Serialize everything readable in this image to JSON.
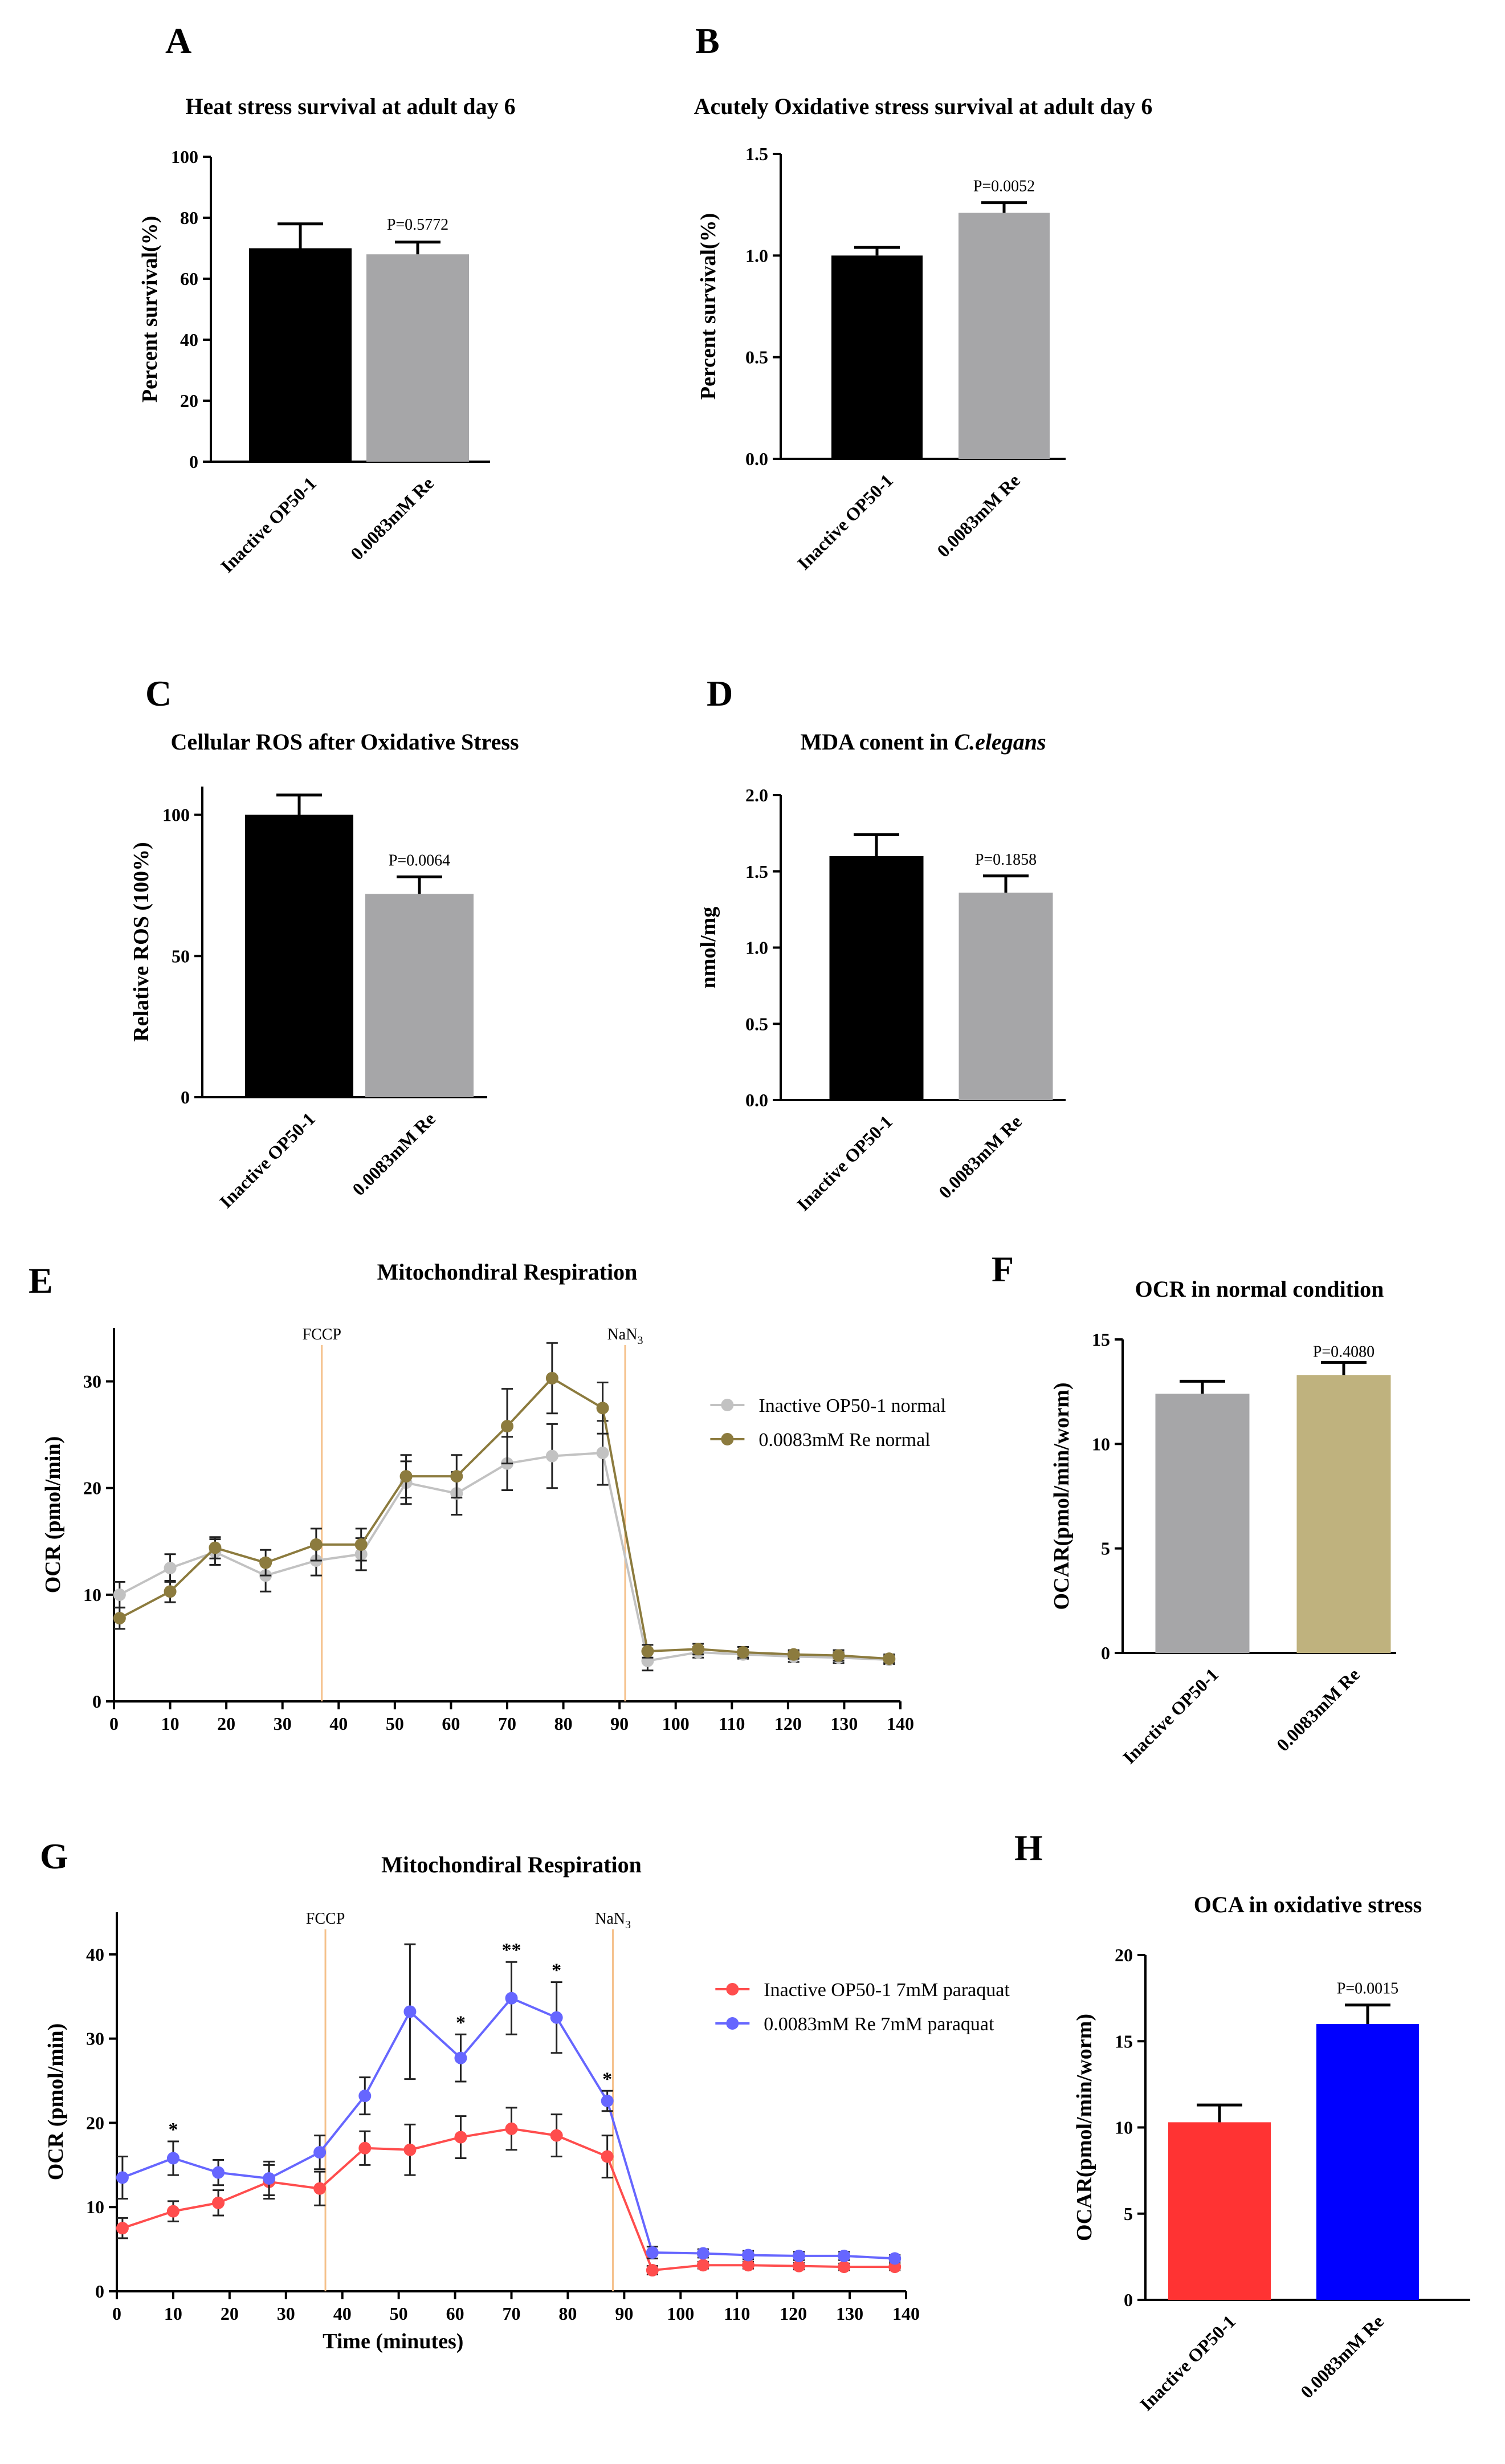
{
  "panels": {
    "A": "A",
    "B": "B",
    "C": "C",
    "D": "D",
    "E": "E",
    "F": "F",
    "G": "G",
    "H": "H"
  },
  "chart_data": [
    {
      "id": "A",
      "type": "bar",
      "title": "Heat stress survival at adult day 6",
      "ylabel": "Percent survival(%)",
      "ylim": [
        0,
        100
      ],
      "yticks": [
        "0",
        "20",
        "40",
        "60",
        "80",
        "100"
      ],
      "categories": [
        "Inactive OP50-1",
        "0.0083mM Re"
      ],
      "values": [
        70,
        68
      ],
      "errors": [
        8,
        4
      ],
      "colors": [
        "#000000",
        "#a6a6a8"
      ],
      "pvalue": "P=0.5772"
    },
    {
      "id": "B",
      "type": "bar",
      "title": "Acutely Oxidative stress survival at adult day 6",
      "ylabel": "Percent survival(%)",
      "ylim": [
        0,
        1.5
      ],
      "yticks": [
        "0.0",
        "0.5",
        "1.0",
        "1.5"
      ],
      "categories": [
        "Inactive OP50-1",
        "0.0083mM Re"
      ],
      "values": [
        1.0,
        1.21
      ],
      "errors": [
        0.04,
        0.05
      ],
      "colors": [
        "#000000",
        "#a6a6a8"
      ],
      "pvalue": "P=0.0052"
    },
    {
      "id": "C",
      "type": "bar",
      "title": "Cellular ROS after Oxidative Stress",
      "ylabel": "Relative  ROS (100%)",
      "ylim": [
        0,
        110
      ],
      "yticks": [
        "0",
        "50",
        "100"
      ],
      "categories": [
        "Inactive OP50-1",
        "0.0083mM Re"
      ],
      "values": [
        100,
        72
      ],
      "errors": [
        7,
        6
      ],
      "colors": [
        "#000000",
        "#a6a6a8"
      ],
      "pvalue": "P=0.0064"
    },
    {
      "id": "D",
      "type": "bar",
      "title_prefix": "MDA conent in ",
      "title_italic": "C.elegans",
      "ylabel": "nmol/mg",
      "ylim": [
        0,
        2.0
      ],
      "yticks": [
        "0.0",
        "0.5",
        "1.0",
        "1.5",
        "2.0"
      ],
      "categories": [
        "Inactive OP50-1",
        "0.0083mM Re"
      ],
      "values": [
        1.6,
        1.36
      ],
      "errors": [
        0.14,
        0.11
      ],
      "colors": [
        "#000000",
        "#a6a6a8"
      ],
      "pvalue": "P=0.1858"
    },
    {
      "id": "E",
      "type": "line",
      "title": "Mitochondiral Respiration",
      "ylabel": "OCR (pmol/min)",
      "xlim": [
        0,
        140
      ],
      "ylim": [
        0,
        35
      ],
      "xticks": [
        "0",
        "10",
        "20",
        "30",
        "40",
        "50",
        "60",
        "70",
        "80",
        "90",
        "100",
        "110",
        "120",
        "130",
        "140"
      ],
      "yticks": [
        "0",
        "10",
        "20",
        "30"
      ],
      "markers": [
        {
          "label": "FCCP",
          "x": 37
        },
        {
          "label": "NaN3",
          "x": 91
        }
      ],
      "series": [
        {
          "name": "Inactive OP50-1 normal",
          "color": "#c2c2c2",
          "x": [
            1,
            10,
            18,
            27,
            36,
            44,
            52,
            61,
            70,
            78,
            87,
            95,
            104,
            112,
            121,
            129,
            138
          ],
          "y": [
            10,
            12.5,
            14,
            11.8,
            13.2,
            13.8,
            20.5,
            19.5,
            22.3,
            23,
            23.3,
            3.8,
            4.6,
            4.4,
            4.2,
            4.1,
            3.9
          ],
          "err": [
            1.2,
            1.3,
            1.2,
            1.5,
            1.4,
            1.5,
            2,
            2,
            2.5,
            3,
            3,
            0.9,
            0.5,
            0.4,
            0.5,
            0.5,
            0.4
          ]
        },
        {
          "name": "0.0083mM Re normal",
          "color": "#8c7b3e",
          "x": [
            1,
            10,
            18,
            27,
            36,
            44,
            52,
            61,
            70,
            78,
            87,
            95,
            104,
            112,
            121,
            129,
            138
          ],
          "y": [
            7.8,
            10.3,
            14.4,
            13,
            14.7,
            14.7,
            21.1,
            21.1,
            25.8,
            30.3,
            27.5,
            4.7,
            4.9,
            4.6,
            4.4,
            4.3,
            4
          ],
          "err": [
            1,
            1,
            1,
            1.2,
            1.5,
            1.5,
            2,
            2,
            3.5,
            3.3,
            2.4,
            0.6,
            0.5,
            0.5,
            0.4,
            0.5,
            0.4
          ]
        }
      ]
    },
    {
      "id": "F",
      "type": "bar",
      "title": "OCR in normal condition",
      "ylabel": "OCAR(pmol/min/worm)",
      "ylim": [
        0,
        15
      ],
      "yticks": [
        "0",
        "5",
        "10",
        "15"
      ],
      "categories": [
        "Inactive OP50-1",
        "0.0083mM Re"
      ],
      "values": [
        12.4,
        13.3
      ],
      "errors": [
        0.6,
        0.6
      ],
      "colors": [
        "#a6a6a8",
        "#bfb27e"
      ],
      "pvalue": "P=0.4080"
    },
    {
      "id": "G",
      "type": "line",
      "title": "Mitochondiral Respiration",
      "xlabel": "Time (minutes)",
      "ylabel": "OCR (pmol/min)",
      "xlim": [
        0,
        140
      ],
      "ylim": [
        0,
        45
      ],
      "xticks": [
        "0",
        "10",
        "20",
        "30",
        "40",
        "50",
        "60",
        "70",
        "80",
        "90",
        "100",
        "110",
        "120",
        "130",
        "140"
      ],
      "yticks": [
        "0",
        "10",
        "20",
        "30",
        "40"
      ],
      "markers": [
        {
          "label": "FCCP",
          "x": 37
        },
        {
          "label": "NaN3",
          "x": 88
        }
      ],
      "stars": [
        {
          "x": 10,
          "label": "*"
        },
        {
          "x": 61,
          "label": "*"
        },
        {
          "x": 70,
          "label": "**"
        },
        {
          "x": 78,
          "label": "*"
        },
        {
          "x": 87,
          "label": "*"
        }
      ],
      "series": [
        {
          "name": "Inactive OP50-1 7mM paraquat",
          "color": "#ff4d4d",
          "x": [
            1,
            10,
            18,
            27,
            36,
            44,
            52,
            61,
            70,
            78,
            87,
            95,
            104,
            112,
            121,
            129,
            138
          ],
          "y": [
            7.5,
            9.5,
            10.5,
            13,
            12.2,
            17,
            16.8,
            18.3,
            19.3,
            18.5,
            16,
            2.5,
            3.1,
            3.1,
            3,
            2.9,
            2.9
          ],
          "err": [
            1.2,
            1.2,
            1.5,
            2,
            2,
            2,
            3,
            2.5,
            2.5,
            2.5,
            2.5,
            0.5,
            0.4,
            0.4,
            0.4,
            0.4,
            0.4
          ]
        },
        {
          "name": "0.0083mM Re 7mM paraquat",
          "color": "#6666ff",
          "x": [
            1,
            10,
            18,
            27,
            36,
            44,
            52,
            61,
            70,
            78,
            87,
            95,
            104,
            112,
            121,
            129,
            138
          ],
          "y": [
            13.5,
            15.8,
            14.1,
            13.4,
            16.5,
            23.2,
            33.2,
            27.7,
            34.8,
            32.5,
            22.6,
            4.6,
            4.5,
            4.3,
            4.2,
            4.2,
            3.9
          ],
          "err": [
            2.5,
            2,
            1.5,
            2,
            2,
            2.2,
            8,
            2.8,
            4.3,
            4.2,
            1.2,
            0.7,
            0.5,
            0.5,
            0.5,
            0.5,
            0.4
          ]
        }
      ]
    },
    {
      "id": "H",
      "type": "bar",
      "title": "OCA in oxidative stress",
      "ylabel": "OCAR(pmol/min/worm)",
      "ylim": [
        0,
        20
      ],
      "yticks": [
        "0",
        "5",
        "10",
        "15",
        "20"
      ],
      "categories": [
        "Inactive OP50-1",
        "0.0083mM Re"
      ],
      "values": [
        10.3,
        16.0
      ],
      "errors": [
        1.0,
        1.1
      ],
      "colors": [
        "#ff3333",
        "#0000ff"
      ],
      "pvalue": "P=0.0015"
    }
  ]
}
